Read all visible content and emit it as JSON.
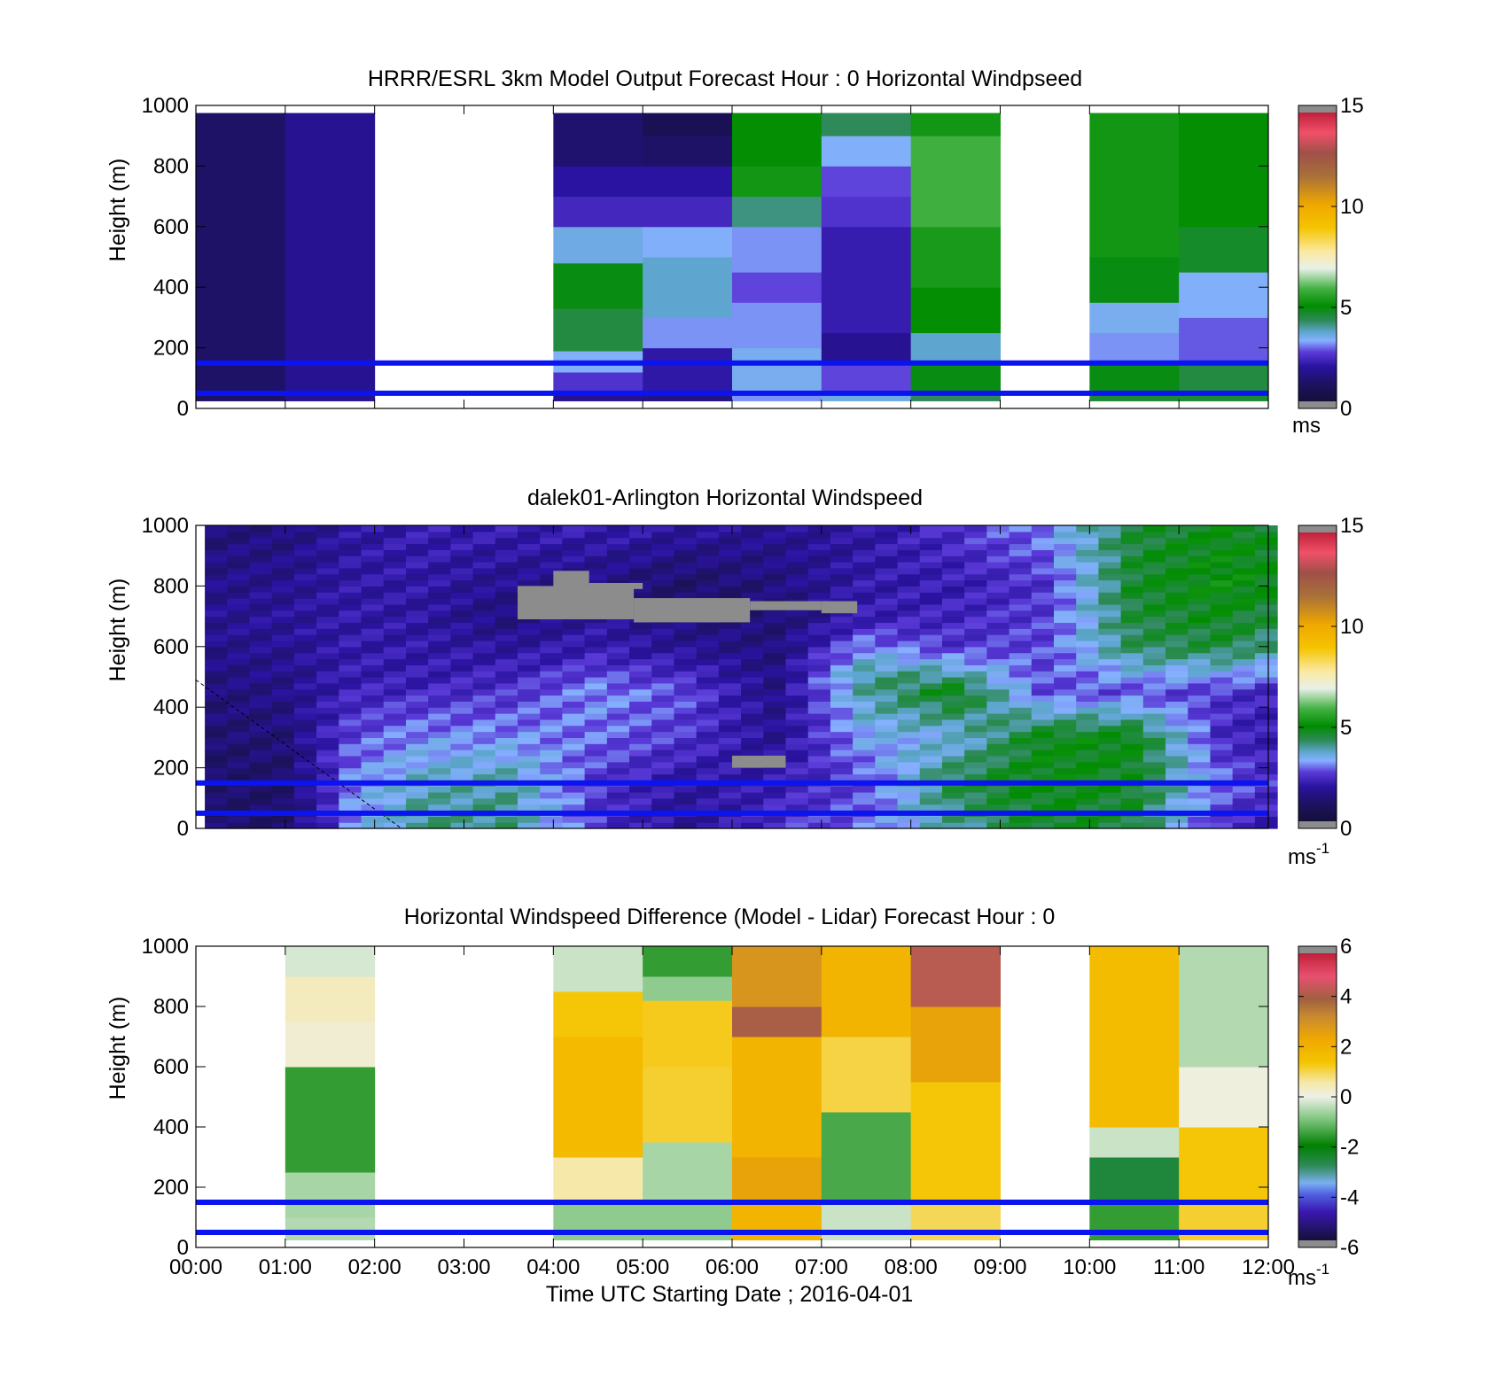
{
  "figure": {
    "xlabel": "Time UTC  Starting Date ; 2016-04-01",
    "xtick_labels": [
      "00:00",
      "01:00",
      "02:00",
      "03:00",
      "04:00",
      "05:00",
      "06:00",
      "07:00",
      "08:00",
      "09:00",
      "10:00",
      "11:00",
      "12:00"
    ]
  },
  "chart_data": [
    {
      "type": "heatmap",
      "title": "HRRR/ESRL 3km Model Output   Forecast Hour : 0 Horizontal Windpseed",
      "ylabel": "Height (m)",
      "xlim": [
        "00:00",
        "12:00"
      ],
      "ylim": [
        0,
        1000
      ],
      "yticks": [
        0,
        200,
        400,
        600,
        800,
        1000
      ],
      "colorbar": {
        "ticks": [
          0,
          5,
          10,
          15
        ],
        "unit": "ms",
        "unit_sup": "",
        "range": [
          0,
          15
        ]
      },
      "hlines_m": [
        150,
        50
      ],
      "hline_color": "#0a14f0",
      "value_top_m": 975,
      "hour_columns": [
        {
          "hour": 0,
          "values": [
            {
              "to": 1000,
              "v": 1.0
            }
          ]
        },
        {
          "hour": 1,
          "values": [
            {
              "to": 1000,
              "v": 1.6
            }
          ]
        },
        {
          "hour": 2,
          "values": null
        },
        {
          "hour": 3,
          "values": null
        },
        {
          "hour": 4,
          "values": [
            {
              "to": 60,
              "v": 1.6
            },
            {
              "to": 120,
              "v": 2.4
            },
            {
              "to": 190,
              "v": 3.2
            },
            {
              "to": 330,
              "v": 4.4
            },
            {
              "to": 480,
              "v": 4.8
            },
            {
              "to": 600,
              "v": 3.4
            },
            {
              "to": 700,
              "v": 2.2
            },
            {
              "to": 800,
              "v": 1.8
            },
            {
              "to": 1000,
              "v": 1.1
            }
          ]
        },
        {
          "hour": 5,
          "values": [
            {
              "to": 60,
              "v": 1.4
            },
            {
              "to": 200,
              "v": 1.9
            },
            {
              "to": 300,
              "v": 3.0
            },
            {
              "to": 500,
              "v": 3.6
            },
            {
              "to": 600,
              "v": 3.2
            },
            {
              "to": 700,
              "v": 2.2
            },
            {
              "to": 800,
              "v": 1.8
            },
            {
              "to": 900,
              "v": 1.0
            },
            {
              "to": 1000,
              "v": 0.6
            }
          ]
        },
        {
          "hour": 6,
          "values": [
            {
              "to": 60,
              "v": 3.0
            },
            {
              "to": 200,
              "v": 3.3
            },
            {
              "to": 350,
              "v": 3.0
            },
            {
              "to": 450,
              "v": 2.6
            },
            {
              "to": 600,
              "v": 3.0
            },
            {
              "to": 700,
              "v": 4.0
            },
            {
              "to": 800,
              "v": 5.2
            },
            {
              "to": 1000,
              "v": 5.0
            }
          ]
        },
        {
          "hour": 7,
          "values": [
            {
              "to": 60,
              "v": 3.4
            },
            {
              "to": 150,
              "v": 2.6
            },
            {
              "to": 250,
              "v": 1.6
            },
            {
              "to": 600,
              "v": 2.0
            },
            {
              "to": 700,
              "v": 2.4
            },
            {
              "to": 800,
              "v": 2.6
            },
            {
              "to": 900,
              "v": 3.2
            },
            {
              "to": 1000,
              "v": 4.2
            }
          ]
        },
        {
          "hour": 8,
          "values": [
            {
              "to": 60,
              "v": 4.2
            },
            {
              "to": 150,
              "v": 4.8
            },
            {
              "to": 250,
              "v": 3.6
            },
            {
              "to": 400,
              "v": 5.0
            },
            {
              "to": 600,
              "v": 5.3
            },
            {
              "to": 900,
              "v": 5.8
            },
            {
              "to": 1000,
              "v": 5.2
            }
          ]
        },
        {
          "hour": 9,
          "values": null
        },
        {
          "hour": 10,
          "values": [
            {
              "to": 60,
              "v": 4.5
            },
            {
              "to": 150,
              "v": 4.8
            },
            {
              "to": 250,
              "v": 3.0
            },
            {
              "to": 350,
              "v": 3.3
            },
            {
              "to": 500,
              "v": 4.8
            },
            {
              "to": 1000,
              "v": 5.2
            }
          ]
        },
        {
          "hour": 11,
          "values": [
            {
              "to": 60,
              "v": 4.5
            },
            {
              "to": 150,
              "v": 4.4
            },
            {
              "to": 300,
              "v": 2.7
            },
            {
              "to": 450,
              "v": 3.2
            },
            {
              "to": 600,
              "v": 4.6
            },
            {
              "to": 1000,
              "v": 5.0
            }
          ]
        }
      ]
    },
    {
      "type": "heatmap",
      "title": "dalek01-Arlington  Horizontal Windspeed",
      "ylabel": "Height (m)",
      "xlim": [
        "00:00",
        "12:00"
      ],
      "ylim": [
        0,
        1000
      ],
      "yticks": [
        0,
        200,
        400,
        600,
        800,
        1000
      ],
      "colorbar": {
        "ticks": [
          0,
          5,
          10,
          15
        ],
        "unit": "ms",
        "unit_sup": "-1",
        "range": [
          0,
          15
        ]
      },
      "hlines_m": [
        150,
        50
      ],
      "hline_color": "#0a14f0",
      "value_top_m": 1000,
      "time_step_min": 15,
      "data_start_h": 0.1,
      "data_end_h": 11.88,
      "profiles": [
        {
          "t": 0.0,
          "v": [
            [
              0,
              1.2
            ],
            [
              150,
              1.0
            ],
            [
              400,
              1.2
            ],
            [
              700,
              1.6
            ],
            [
              1000,
              1.2
            ]
          ]
        },
        {
          "t": 1.0,
          "v": [
            [
              0,
              1.0
            ],
            [
              150,
              1.0
            ],
            [
              400,
              1.4
            ],
            [
              700,
              1.7
            ],
            [
              1000,
              1.3
            ]
          ]
        },
        {
          "t": 1.75,
          "v": [
            [
              0,
              3.0
            ],
            [
              150,
              3.0
            ],
            [
              300,
              2.6
            ],
            [
              500,
              2.0
            ],
            [
              700,
              1.9
            ],
            [
              1000,
              1.8
            ]
          ]
        },
        {
          "t": 2.5,
          "v": [
            [
              0,
              4.0
            ],
            [
              150,
              3.6
            ],
            [
              300,
              3.0
            ],
            [
              500,
              2.0
            ],
            [
              700,
              1.8
            ],
            [
              1000,
              2.0
            ]
          ]
        },
        {
          "t": 3.5,
          "v": [
            [
              0,
              4.0
            ],
            [
              150,
              3.8
            ],
            [
              300,
              3.0
            ],
            [
              500,
              2.2
            ],
            [
              700,
              1.3
            ],
            [
              1000,
              2.0
            ]
          ]
        },
        {
          "t": 4.5,
          "v": [
            [
              0,
              2.4
            ],
            [
              150,
              2.4
            ],
            [
              300,
              2.8
            ],
            [
              450,
              3.0
            ],
            [
              600,
              2.0
            ],
            [
              800,
              1.4
            ],
            [
              1000,
              2.0
            ]
          ]
        },
        {
          "t": 5.5,
          "v": [
            [
              0,
              1.6
            ],
            [
              150,
              1.8
            ],
            [
              300,
              2.4
            ],
            [
              450,
              2.6
            ],
            [
              600,
              1.6
            ],
            [
              800,
              1.0
            ],
            [
              1000,
              1.8
            ]
          ]
        },
        {
          "t": 6.5,
          "v": [
            [
              0,
              2.4
            ],
            [
              150,
              2.0
            ],
            [
              300,
              1.6
            ],
            [
              500,
              1.4
            ],
            [
              700,
              1.2
            ],
            [
              1000,
              1.6
            ]
          ]
        },
        {
          "t": 7.5,
          "v": [
            [
              0,
              2.8
            ],
            [
              150,
              2.6
            ],
            [
              350,
              3.4
            ],
            [
              500,
              4.0
            ],
            [
              700,
              2.0
            ],
            [
              1000,
              1.8
            ]
          ]
        },
        {
          "t": 8.5,
          "v": [
            [
              0,
              3.8
            ],
            [
              150,
              4.4
            ],
            [
              300,
              3.4
            ],
            [
              450,
              4.8
            ],
            [
              600,
              2.4
            ],
            [
              800,
              2.0
            ],
            [
              1000,
              2.4
            ]
          ]
        },
        {
          "t": 9.5,
          "v": [
            [
              0,
              4.6
            ],
            [
              150,
              4.8
            ],
            [
              300,
              4.8
            ],
            [
              450,
              2.6
            ],
            [
              600,
              2.6
            ],
            [
              800,
              2.4
            ],
            [
              1000,
              3.0
            ]
          ]
        },
        {
          "t": 10.5,
          "v": [
            [
              0,
              4.4
            ],
            [
              150,
              4.6
            ],
            [
              300,
              4.8
            ],
            [
              450,
              2.6
            ],
            [
              600,
              4.2
            ],
            [
              800,
              4.6
            ],
            [
              1000,
              4.4
            ]
          ]
        },
        {
          "t": 11.5,
          "v": [
            [
              0,
              2.2
            ],
            [
              150,
              2.8
            ],
            [
              300,
              2.2
            ],
            [
              450,
              2.4
            ],
            [
              600,
              4.4
            ],
            [
              800,
              5.0
            ],
            [
              1000,
              4.8
            ]
          ]
        },
        {
          "t": 12.0,
          "v": [
            [
              0,
              2.0
            ],
            [
              150,
              2.4
            ],
            [
              300,
              2.0
            ],
            [
              450,
              2.2
            ],
            [
              600,
              4.0
            ],
            [
              800,
              4.8
            ],
            [
              1000,
              4.6
            ]
          ]
        }
      ],
      "missing_regions": [
        {
          "t0": 3.6,
          "t1": 4.9,
          "y0": 690,
          "y1": 800
        },
        {
          "t0": 4.0,
          "t1": 4.4,
          "y0": 780,
          "y1": 850
        },
        {
          "t0": 4.4,
          "t1": 5.0,
          "y0": 790,
          "y1": 810
        },
        {
          "t0": 4.9,
          "t1": 6.2,
          "y0": 680,
          "y1": 760
        },
        {
          "t0": 6.2,
          "t1": 7.0,
          "y0": 720,
          "y1": 750
        },
        {
          "t0": 7.0,
          "t1": 7.4,
          "y0": 710,
          "y1": 750
        },
        {
          "t0": 6.0,
          "t1": 6.6,
          "y0": 200,
          "y1": 240
        }
      ]
    },
    {
      "type": "heatmap",
      "title": "Horizontal Windspeed Difference (Model - Lidar) Forecast Hour : 0",
      "ylabel": "Height (m)",
      "xlim": [
        "00:00",
        "12:00"
      ],
      "ylim": [
        0,
        1000
      ],
      "yticks": [
        0,
        200,
        400,
        600,
        800,
        1000
      ],
      "colorbar": {
        "ticks": [
          -6,
          -4,
          -2,
          0,
          2,
          4,
          6
        ],
        "unit": "ms",
        "unit_sup": "-1",
        "range": [
          -6,
          6
        ]
      },
      "hlines_m": [
        150,
        50
      ],
      "hline_color": "#0a14f0",
      "value_top_m": 1000,
      "hour_columns": [
        {
          "hour": 0,
          "values": null
        },
        {
          "hour": 1,
          "values": [
            {
              "to": 100,
              "v": -0.5
            },
            {
              "to": 250,
              "v": -0.6
            },
            {
              "to": 600,
              "v": -1.6
            },
            {
              "to": 750,
              "v": 0.2
            },
            {
              "to": 900,
              "v": 0.4
            },
            {
              "to": 1000,
              "v": -0.2
            }
          ]
        },
        {
          "hour": 2,
          "values": null
        },
        {
          "hour": 3,
          "values": null
        },
        {
          "hour": 4,
          "values": [
            {
              "to": 150,
              "v": -0.8
            },
            {
              "to": 300,
              "v": 0.6
            },
            {
              "to": 700,
              "v": 1.8
            },
            {
              "to": 850,
              "v": 1.4
            },
            {
              "to": 1000,
              "v": -0.3
            }
          ]
        },
        {
          "hour": 5,
          "values": [
            {
              "to": 150,
              "v": -0.8
            },
            {
              "to": 350,
              "v": -0.6
            },
            {
              "to": 600,
              "v": 1.2
            },
            {
              "to": 820,
              "v": 1.3
            },
            {
              "to": 900,
              "v": -0.8
            },
            {
              "to": 1000,
              "v": -1.6
            }
          ]
        },
        {
          "hour": 6,
          "values": [
            {
              "to": 150,
              "v": 2.0
            },
            {
              "to": 300,
              "v": 2.6
            },
            {
              "to": 700,
              "v": 2.0
            },
            {
              "to": 800,
              "v": 4.2
            },
            {
              "to": 1000,
              "v": 3.0
            }
          ]
        },
        {
          "hour": 7,
          "values": [
            {
              "to": 150,
              "v": -0.3
            },
            {
              "to": 450,
              "v": -1.4
            },
            {
              "to": 700,
              "v": 1.1
            },
            {
              "to": 1000,
              "v": 2.0
            }
          ]
        },
        {
          "hour": 8,
          "values": [
            {
              "to": 150,
              "v": 1.0
            },
            {
              "to": 550,
              "v": 1.4
            },
            {
              "to": 800,
              "v": 2.6
            },
            {
              "to": 1000,
              "v": 4.4
            }
          ]
        },
        {
          "hour": 9,
          "values": null
        },
        {
          "hour": 10,
          "values": [
            {
              "to": 150,
              "v": -1.6
            },
            {
              "to": 300,
              "v": -2.6
            },
            {
              "to": 400,
              "v": -0.3
            },
            {
              "to": 1000,
              "v": 1.7
            }
          ]
        },
        {
          "hour": 11,
          "values": [
            {
              "to": 150,
              "v": 1.2
            },
            {
              "to": 400,
              "v": 1.4
            },
            {
              "to": 600,
              "v": 0.1
            },
            {
              "to": 1000,
              "v": -0.5
            }
          ]
        }
      ]
    }
  ]
}
